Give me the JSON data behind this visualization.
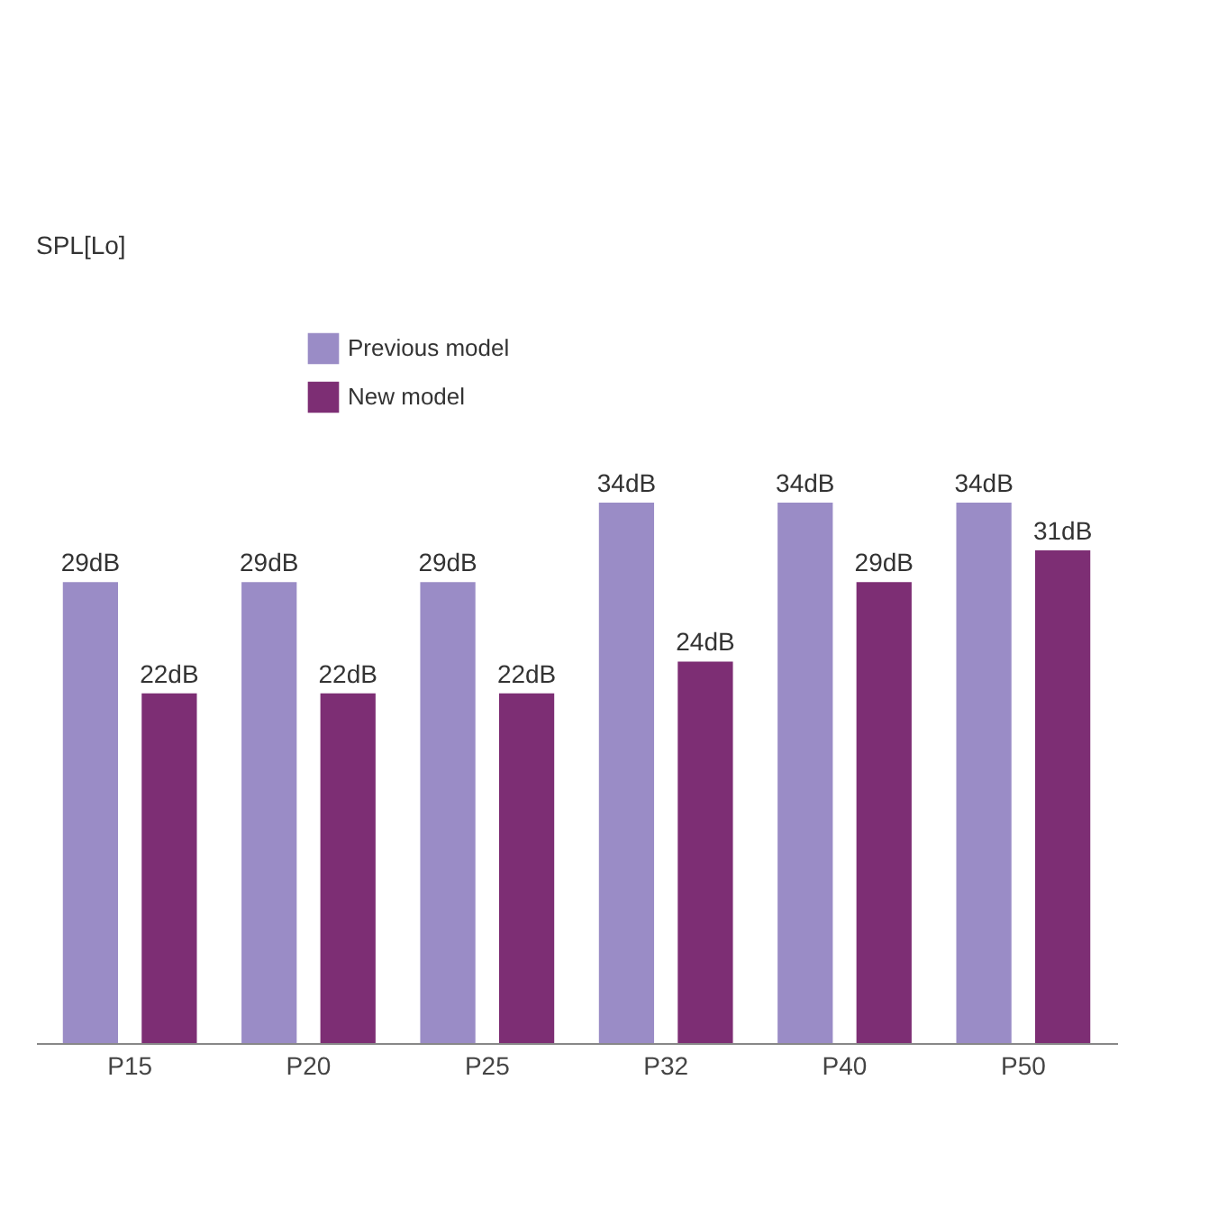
{
  "chart_data": {
    "type": "bar",
    "categories": [
      "P15",
      "P20",
      "P25",
      "P32",
      "P40",
      "P50"
    ],
    "series": [
      {
        "name": "Previous model",
        "color": "#9a8cc6",
        "values": [
          29,
          29,
          29,
          34,
          34,
          34
        ],
        "value_labels": [
          "29dB",
          "29dB",
          "29dB",
          "34dB",
          "34dB",
          "34dB"
        ]
      },
      {
        "name": "New model",
        "color": "#7d2e74",
        "values": [
          22,
          22,
          22,
          24,
          29,
          31
        ],
        "value_labels": [
          "22dB",
          "22dB",
          "22dB",
          "24dB",
          "29dB",
          "31dB"
        ]
      }
    ],
    "legend": "top left",
    "annotations": [
      "SPL[Lo]"
    ]
  }
}
